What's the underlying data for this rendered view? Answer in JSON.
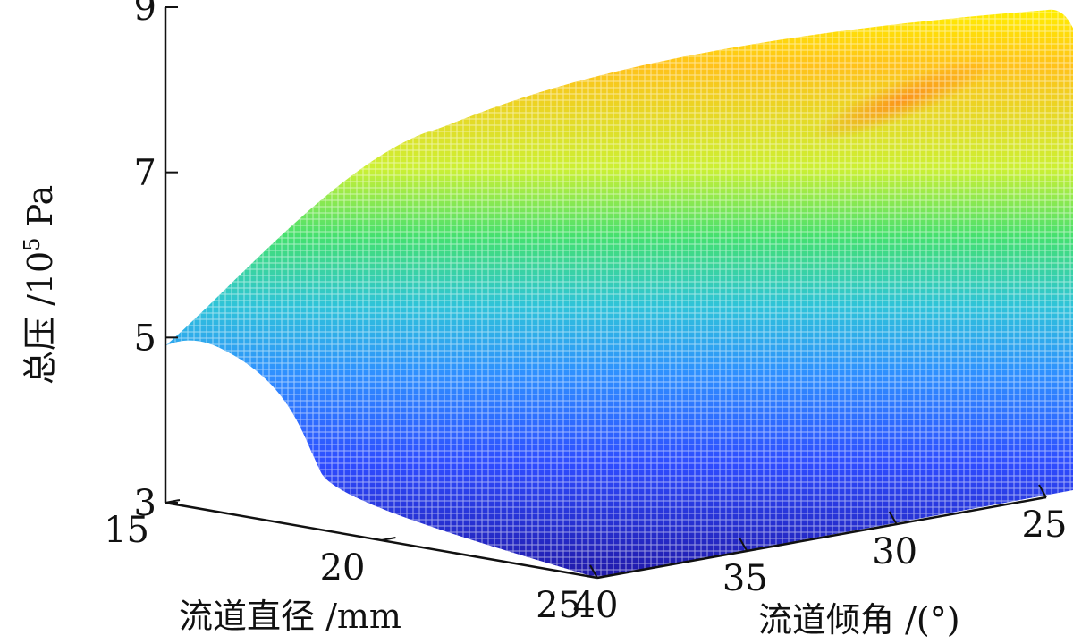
{
  "chart_data": {
    "type": "surface",
    "title": "",
    "zlabel_main": "总压 /10",
    "zlabel_exp": "5",
    "zlabel_unit": " Pa",
    "xlabel": "流道直径 /mm",
    "ylabel": "流道倾角 /(°)",
    "x_ticks": [
      15,
      20,
      25
    ],
    "y_ticks": [
      25,
      30,
      35,
      40
    ],
    "z_ticks": [
      3,
      5,
      7,
      9
    ],
    "xlim": [
      15,
      25
    ],
    "ylim": [
      25,
      40
    ],
    "zlim": [
      3,
      9
    ],
    "corner_values": [
      {
        "diameter": 15,
        "angle": 40,
        "pressure": 4.9
      },
      {
        "diameter": 15,
        "angle": 25,
        "pressure": 8.9
      },
      {
        "diameter": 25,
        "angle": 25,
        "pressure": 4.9
      },
      {
        "diameter": 25,
        "angle": 40,
        "pressure": 3.0
      }
    ],
    "colormap": [
      "#00008f",
      "#0000ff",
      "#0080ff",
      "#00ffff",
      "#80ff80",
      "#ffff00",
      "#ff8000"
    ],
    "grid": false,
    "legend": "none"
  }
}
